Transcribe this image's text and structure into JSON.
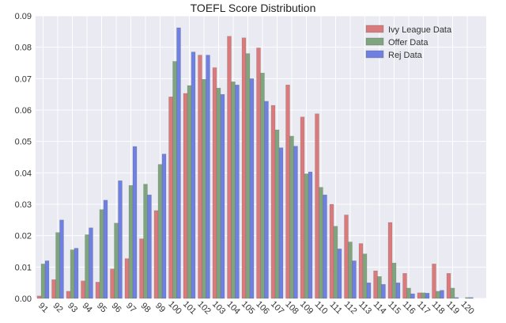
{
  "chart_data": {
    "type": "bar",
    "title": "TOEFL Score Distribution",
    "xlabel": "",
    "ylabel": "",
    "ylim": [
      0,
      0.09
    ],
    "yticks": [
      "0.00",
      "0.01",
      "0.02",
      "0.03",
      "0.04",
      "0.05",
      "0.06",
      "0.07",
      "0.08",
      "0.09"
    ],
    "grid": true,
    "legend_position": "top-right",
    "categories": [
      "91",
      "92",
      "93",
      "94",
      "95",
      "96",
      "97",
      "98",
      "99",
      "100",
      "101",
      "102",
      "103",
      "104",
      "105",
      "106",
      "107",
      "108",
      "109",
      "110",
      "111",
      "112",
      "113",
      "114",
      "115",
      "116",
      "117",
      "118",
      "119",
      "120"
    ],
    "series": [
      {
        "name": "Ivy League Data",
        "color": "#d97a7d",
        "values": [
          0.0008,
          0.006,
          0.0023,
          0.0056,
          0.0052,
          0.0094,
          0.0127,
          0.019,
          0.028,
          0.0642,
          0.0653,
          0.0775,
          0.0735,
          0.0835,
          0.083,
          0.0798,
          0.0615,
          0.068,
          0.0578,
          0.0588,
          0.03,
          0.0266,
          0.0175,
          0.0088,
          0.0242,
          0.008,
          0.0018,
          0.011,
          0.008,
          0.0
        ]
      },
      {
        "name": "Offer Data",
        "color": "#7fa57f",
        "values": [
          0.011,
          0.021,
          0.0155,
          0.0203,
          0.0283,
          0.024,
          0.036,
          0.0364,
          0.0427,
          0.0755,
          0.0678,
          0.0698,
          0.067,
          0.069,
          0.078,
          0.0718,
          0.0537,
          0.0517,
          0.0397,
          0.0354,
          0.023,
          0.018,
          0.0142,
          0.007,
          0.0113,
          0.0033,
          0.0018,
          0.0023,
          0.0033,
          0.0003
        ]
      },
      {
        "name": "Rej Data",
        "color": "#6f80e0",
        "values": [
          0.012,
          0.025,
          0.016,
          0.0225,
          0.0313,
          0.0375,
          0.0484,
          0.033,
          0.046,
          0.0862,
          0.0785,
          0.0775,
          0.065,
          0.068,
          0.07,
          0.0628,
          0.048,
          0.0485,
          0.0403,
          0.033,
          0.0158,
          0.012,
          0.005,
          0.0045,
          0.005,
          0.0015,
          0.0017,
          0.0026,
          0.0003,
          0.0003
        ]
      }
    ]
  }
}
